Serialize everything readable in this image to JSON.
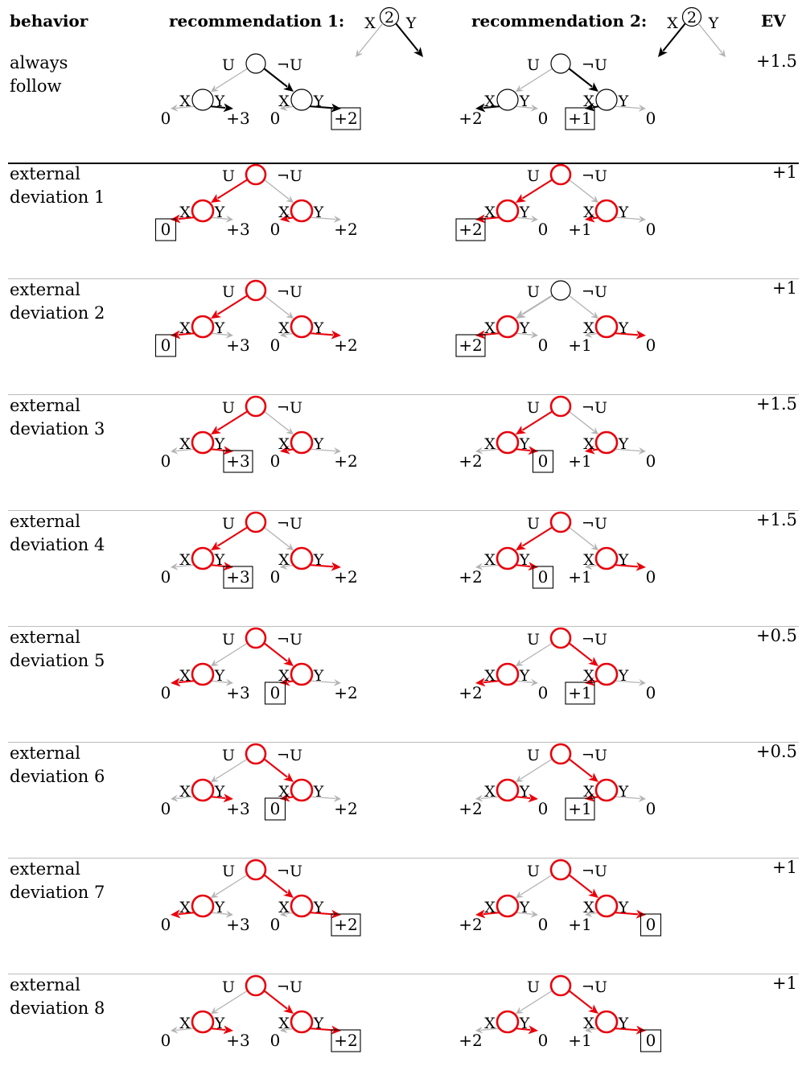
{
  "headers": {
    "behavior": "behavior",
    "rec1": "recommendation 1:",
    "rec2": "recommendation 2:",
    "ev": "EV"
  },
  "icons": {
    "rec1": {
      "node": "2",
      "left": "X",
      "right": "Y",
      "chosen": "Y"
    },
    "rec2": {
      "node": "2",
      "left": "X",
      "right": "Y",
      "chosen": "X"
    }
  },
  "node_labels": {
    "u": "U",
    "not_u": "¬U",
    "x": "X",
    "y": "Y"
  },
  "payoffs": {
    "rec1": [
      "0",
      "+3",
      "0",
      "+2"
    ],
    "rec2": [
      "+2",
      "0",
      "+1",
      "0"
    ]
  },
  "colors": {
    "active": "#e8000b",
    "follow": "#000000",
    "inactive": "#b4b4b4",
    "ring": "#000000"
  },
  "rows": [
    {
      "label": "always\nfollow",
      "ev": "+1.5",
      "rec1": {
        "style": "follow",
        "root": "R",
        "left": "R",
        "right": "R",
        "red": [
          false,
          false,
          false
        ],
        "boxed": 3
      },
      "rec2": {
        "style": "follow",
        "root": "R",
        "left": "L",
        "right": "L",
        "red": [
          false,
          false,
          false
        ],
        "boxed": 2
      }
    },
    {
      "label": "external\ndeviation 1",
      "ev": "+1",
      "rec1": {
        "root": "L",
        "left": "L",
        "right": "L",
        "red": [
          true,
          true,
          true
        ],
        "boxed": 0
      },
      "rec2": {
        "root": "L",
        "left": "L",
        "right": "L",
        "red": [
          true,
          true,
          true
        ],
        "boxed": 0
      }
    },
    {
      "label": "external\ndeviation 2",
      "ev": "+1",
      "rec1": {
        "root": "L",
        "left": "L",
        "right": "R",
        "red": [
          true,
          true,
          true
        ],
        "boxed": 0
      },
      "rec2": {
        "root": "L",
        "left": "L",
        "right": "R",
        "red": [
          false,
          true,
          true
        ],
        "boxed": 0
      }
    },
    {
      "label": "external\ndeviation 3",
      "ev": "+1.5",
      "rec1": {
        "root": "L",
        "left": "R",
        "right": "L",
        "red": [
          true,
          true,
          true
        ],
        "boxed": 1
      },
      "rec2": {
        "root": "L",
        "left": "R",
        "right": "L",
        "red": [
          true,
          true,
          true
        ],
        "boxed": 1
      }
    },
    {
      "label": "external\ndeviation 4",
      "ev": "+1.5",
      "rec1": {
        "root": "L",
        "left": "R",
        "right": "R",
        "red": [
          true,
          true,
          true
        ],
        "boxed": 1
      },
      "rec2": {
        "root": "L",
        "left": "R",
        "right": "R",
        "red": [
          true,
          true,
          true
        ],
        "boxed": 1
      }
    },
    {
      "label": "external\ndeviation 5",
      "ev": "+0.5",
      "rec1": {
        "root": "R",
        "left": "L",
        "right": "L",
        "red": [
          true,
          true,
          true
        ],
        "boxed": 2
      },
      "rec2": {
        "root": "R",
        "left": "L",
        "right": "L",
        "red": [
          true,
          true,
          true
        ],
        "boxed": 2
      }
    },
    {
      "label": "external\ndeviation 6",
      "ev": "+0.5",
      "rec1": {
        "root": "R",
        "left": "R",
        "right": "L",
        "red": [
          true,
          true,
          true
        ],
        "boxed": 2
      },
      "rec2": {
        "root": "R",
        "left": "R",
        "right": "L",
        "red": [
          true,
          true,
          true
        ],
        "boxed": 2
      }
    },
    {
      "label": "external\ndeviation 7",
      "ev": "+1",
      "rec1": {
        "root": "R",
        "left": "L",
        "right": "R",
        "red": [
          true,
          true,
          true
        ],
        "boxed": 3
      },
      "rec2": {
        "root": "R",
        "left": "L",
        "right": "R",
        "red": [
          true,
          true,
          true
        ],
        "boxed": 3
      }
    },
    {
      "label": "external\ndeviation 8",
      "ev": "+1",
      "rec1": {
        "root": "R",
        "left": "R",
        "right": "R",
        "red": [
          true,
          true,
          true
        ],
        "boxed": 3
      },
      "rec2": {
        "root": "R",
        "left": "R",
        "right": "R",
        "red": [
          true,
          true,
          true
        ],
        "boxed": 3
      }
    }
  ]
}
